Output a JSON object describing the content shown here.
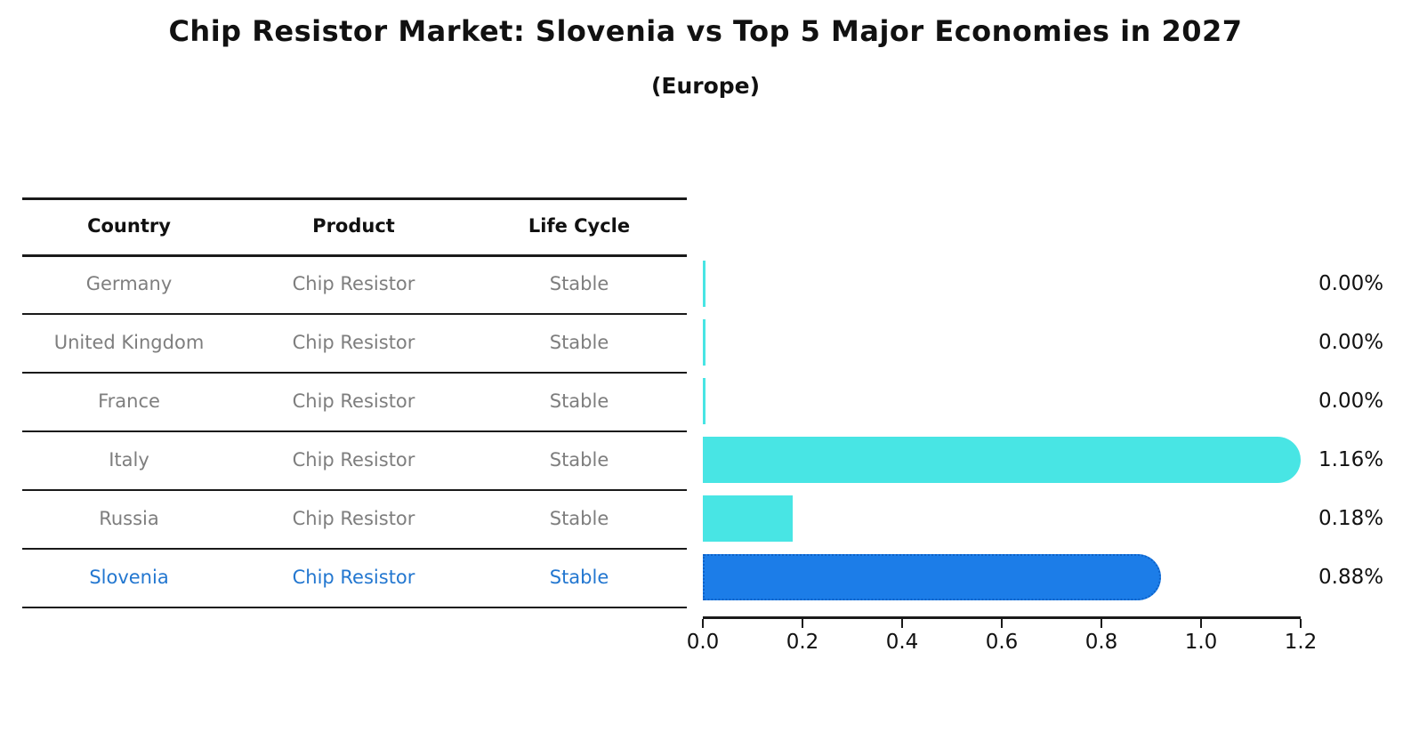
{
  "title": "Chip Resistor Market: Slovenia vs Top 5 Major Economies in 2027",
  "subtitle": "(Europe)",
  "table": {
    "headers": [
      "Country",
      "Product",
      "Life Cycle"
    ],
    "rows": [
      {
        "country": "Germany",
        "product": "Chip Resistor",
        "life_cycle": "Stable",
        "highlight": false
      },
      {
        "country": "United Kingdom",
        "product": "Chip Resistor",
        "life_cycle": "Stable",
        "highlight": false
      },
      {
        "country": "France",
        "product": "Chip Resistor",
        "life_cycle": "Stable",
        "highlight": false
      },
      {
        "country": "Italy",
        "product": "Chip Resistor",
        "life_cycle": "Stable",
        "highlight": false
      },
      {
        "country": "Russia",
        "product": "Chip Resistor",
        "life_cycle": "Stable",
        "highlight": false
      },
      {
        "country": "Slovenia",
        "product": "Chip Resistor",
        "life_cycle": "Stable",
        "highlight": true
      }
    ]
  },
  "chart_data": {
    "type": "bar",
    "orientation": "horizontal",
    "title": "Chip Resistor Market: Slovenia vs Top 5 Major Economies in 2027",
    "subtitle": "(Europe)",
    "categories": [
      "Germany",
      "United Kingdom",
      "France",
      "Italy",
      "Russia",
      "Slovenia"
    ],
    "values": [
      0.0,
      0.0,
      0.0,
      1.16,
      0.18,
      0.88
    ],
    "value_labels": [
      "0.00%",
      "0.00%",
      "0.00%",
      "1.16%",
      "0.18%",
      "0.88%"
    ],
    "xlabel": "",
    "ylabel": "",
    "xlim": [
      0,
      1.2
    ],
    "x_tick_labels": [
      "0.0",
      "0.2",
      "0.4",
      "0.6",
      "0.8",
      "1.0",
      "1.2"
    ],
    "grid": false,
    "legend": false,
    "bar_style": {
      "default_color": "#48E5E4",
      "highlight_color": "#1C7DE8",
      "highlight_border_color": "#0E62C8",
      "highlight_category": "Slovenia",
      "rounded_bars": [
        "Italy",
        "Slovenia"
      ]
    }
  },
  "colors": {
    "header_text": "#111111",
    "row_text": "#7E7E7E",
    "highlight_text": "#2377D0",
    "axis": "#1A1A1A"
  }
}
